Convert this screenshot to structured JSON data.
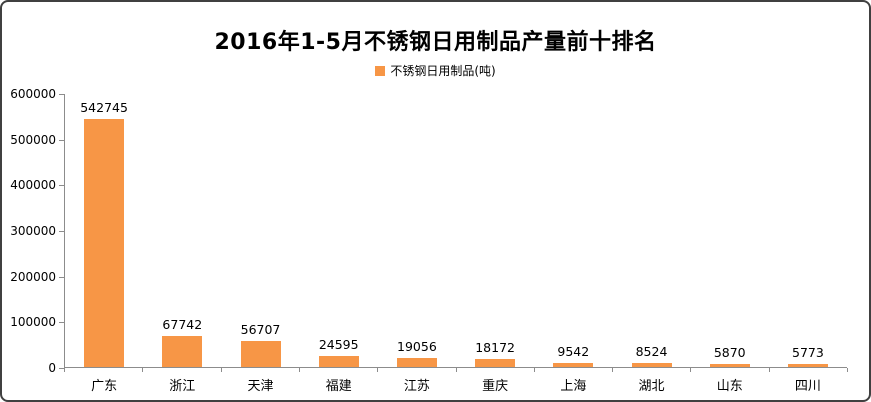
{
  "window": {
    "background": "#ffffff",
    "border_color": "#404040"
  },
  "chart_data": {
    "type": "bar",
    "title": "2016年1-5月不锈钢日用制品产量前十排名",
    "legend": [
      "不锈钢日用制品(吨)"
    ],
    "legend_position": "top",
    "categories": [
      "广东",
      "浙江",
      "天津",
      "福建",
      "江苏",
      "重庆",
      "上海",
      "湖北",
      "山东",
      "四川"
    ],
    "values": [
      542745,
      67742,
      56707,
      24595,
      19056,
      18172,
      9542,
      8524,
      5870,
      5773
    ],
    "xlabel": "",
    "ylabel": "",
    "ylim": [
      0,
      600000
    ],
    "y_ticks": [
      0,
      100000,
      200000,
      300000,
      400000,
      500000,
      600000
    ],
    "grid": false,
    "data_labels": true,
    "bar_color": "#F79646",
    "axis_color": "#8c8c8c",
    "text_color": "#000000"
  }
}
